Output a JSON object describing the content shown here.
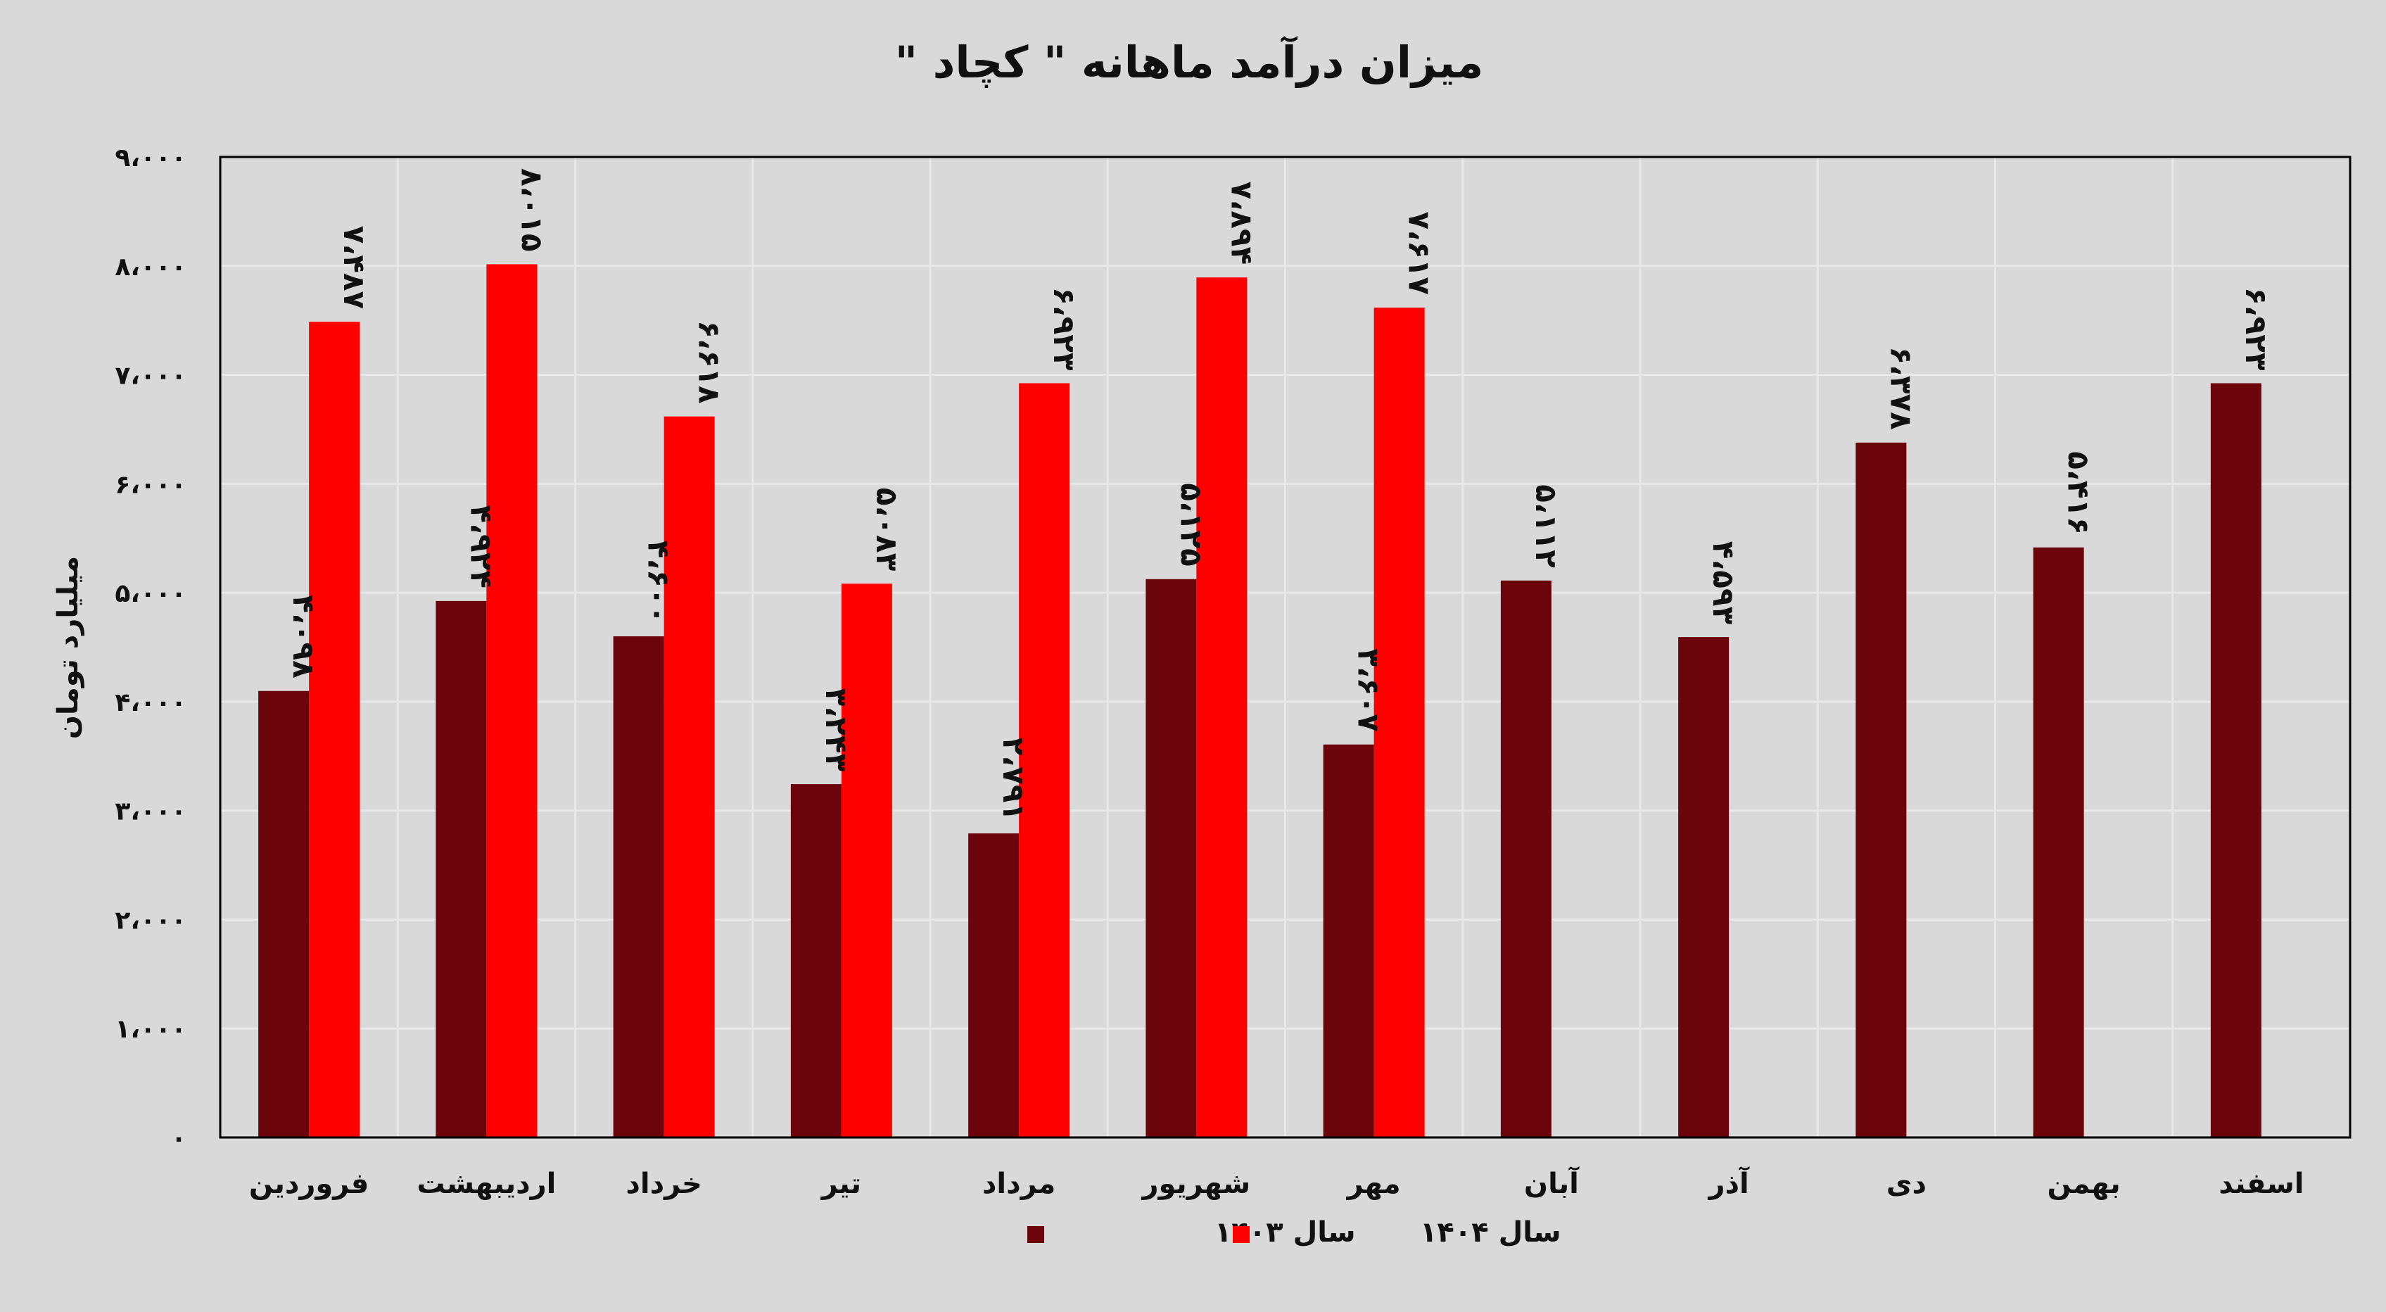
{
  "chart_data": {
    "type": "bar",
    "title": "میزان درآمد ماهانه \" کچاد \"",
    "xlabel": "",
    "ylabel": "میلیارد تومان",
    "ylim": [
      0,
      9000
    ],
    "yticks": [
      0,
      1000,
      2000,
      3000,
      4000,
      5000,
      6000,
      7000,
      8000,
      9000
    ],
    "ytick_labels": [
      "۰",
      "۱،۰۰۰",
      "۲،۰۰۰",
      "۳،۰۰۰",
      "۴،۰۰۰",
      "۵،۰۰۰",
      "۶،۰۰۰",
      "۷،۰۰۰",
      "۸،۰۰۰",
      "۹،۰۰۰"
    ],
    "grid": true,
    "legend_position": "bottom",
    "categories": [
      "فروردین",
      "اردیبهشت",
      "خرداد",
      "تیر",
      "مرداد",
      "شهریور",
      "مهر",
      "آبان",
      "آذر",
      "دی",
      "بهمن",
      "اسفند"
    ],
    "series": [
      {
        "name": "سال ۱۴۰۳",
        "color": "#6b050b",
        "values": [
          4098,
          4924,
          4600,
          3243,
          2791,
          5125,
          3607,
          5112,
          4593,
          6378,
          5416,
          6923
        ],
        "labels": [
          "۴،۰۹۸",
          "۴،۹۲۴",
          "۴،۶۰۰",
          "۳،۲۴۳",
          "۲،۷۹۱",
          "۵،۱۲۵",
          "۳،۶۰۷",
          "۵،۱۱۲",
          "۴،۵۹۳",
          "۶،۳۷۸",
          "۵،۴۱۶",
          "۶،۹۲۳"
        ]
      },
      {
        "name": "سال ۱۴۰۴",
        "color": "#ff0000",
        "values": [
          7487,
          8015,
          6618,
          5083,
          6923,
          7894,
          7617,
          null,
          null,
          null,
          null,
          null
        ],
        "labels": [
          "۷،۴۸۷",
          "۸،۰۱۵",
          "۶،۶۱۸",
          "۵،۰۸۳",
          "۶،۹۲۳",
          "۷،۸۹۴",
          "۷،۶۱۷",
          null,
          null,
          null,
          null,
          null
        ]
      }
    ]
  }
}
